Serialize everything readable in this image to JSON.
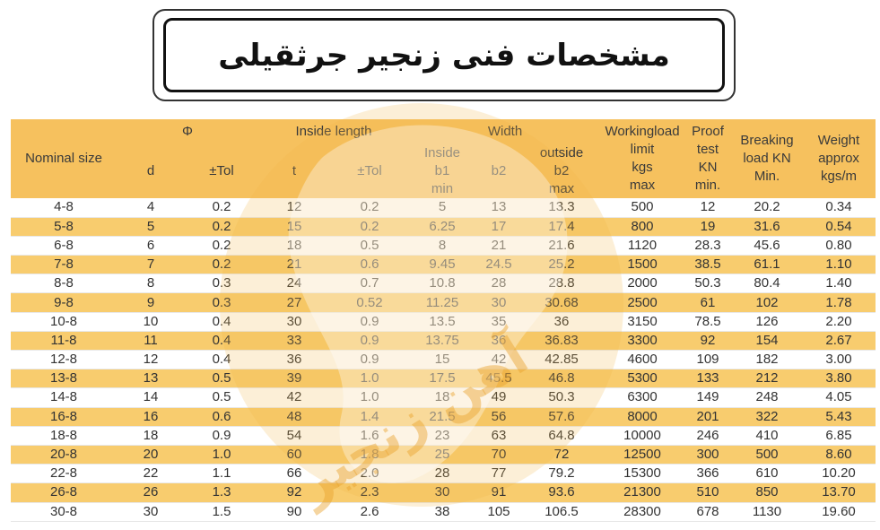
{
  "title": "مشخصات فنی زنجیر جرثقیلی",
  "columns": {
    "nominal": "Nominal size",
    "phi": "Φ",
    "d": "d",
    "tol1": "±Tol",
    "inside_length": "Inside length",
    "t": "t",
    "tol2": "±Tol",
    "width": "Width",
    "inside_b1": [
      "Inside",
      "b1",
      "min"
    ],
    "b2": "b2",
    "outside_b2": [
      "outside",
      "b2",
      "max"
    ],
    "workingload": [
      "Workingload",
      "limit",
      "kgs",
      "max"
    ],
    "proof": [
      "Proof",
      "test",
      "KN",
      "min."
    ],
    "breaking": [
      "Breaking",
      "load KN",
      "Min."
    ],
    "weight": [
      "Weight",
      "approx",
      "kgs/m"
    ]
  },
  "rows": [
    [
      "4-8",
      "4",
      "0.2",
      "12",
      "0.2",
      "5",
      "13",
      "13.3",
      "500",
      "12",
      "20.2",
      "0.34"
    ],
    [
      "5-8",
      "5",
      "0.2",
      "15",
      "0.2",
      "6.25",
      "17",
      "17.4",
      "800",
      "19",
      "31.6",
      "0.54"
    ],
    [
      "6-8",
      "6",
      "0.2",
      "18",
      "0.5",
      "8",
      "21",
      "21.6",
      "1120",
      "28.3",
      "45.6",
      "0.80"
    ],
    [
      "7-8",
      "7",
      "0.2",
      "21",
      "0.6",
      "9.45",
      "24.5",
      "25.2",
      "1500",
      "38.5",
      "61.1",
      "1.10"
    ],
    [
      "8-8",
      "8",
      "0.3",
      "24",
      "0.7",
      "10.8",
      "28",
      "28.8",
      "2000",
      "50.3",
      "80.4",
      "1.40"
    ],
    [
      "9-8",
      "9",
      "0.3",
      "27",
      "0.52",
      "11.25",
      "30",
      "30.68",
      "2500",
      "61",
      "102",
      "1.78"
    ],
    [
      "10-8",
      "10",
      "0.4",
      "30",
      "0.9",
      "13.5",
      "35",
      "36",
      "3150",
      "78.5",
      "126",
      "2.20"
    ],
    [
      "11-8",
      "11",
      "0.4",
      "33",
      "0.9",
      "13.75",
      "36",
      "36.83",
      "3300",
      "92",
      "154",
      "2.67"
    ],
    [
      "12-8",
      "12",
      "0.4",
      "36",
      "0.9",
      "15",
      "42",
      "42.85",
      "4600",
      "109",
      "182",
      "3.00"
    ],
    [
      "13-8",
      "13",
      "0.5",
      "39",
      "1.0",
      "17.5",
      "45.5",
      "46.8",
      "5300",
      "133",
      "212",
      "3.80"
    ],
    [
      "14-8",
      "14",
      "0.5",
      "42",
      "1.0",
      "18",
      "49",
      "50.3",
      "6300",
      "149",
      "248",
      "4.05"
    ],
    [
      "16-8",
      "16",
      "0.6",
      "48",
      "1.4",
      "21.5",
      "56",
      "57.6",
      "8000",
      "201",
      "322",
      "5.43"
    ],
    [
      "18-8",
      "18",
      "0.9",
      "54",
      "1.6",
      "23",
      "63",
      "64.8",
      "10000",
      "246",
      "410",
      "6.85"
    ],
    [
      "20-8",
      "20",
      "1.0",
      "60",
      "1.8",
      "25",
      "70",
      "72",
      "12500",
      "300",
      "500",
      "8.60"
    ],
    [
      "22-8",
      "22",
      "1.1",
      "66",
      "2.0",
      "28",
      "77",
      "79.2",
      "15300",
      "366",
      "610",
      "10.20"
    ],
    [
      "26-8",
      "26",
      "1.3",
      "92",
      "2.3",
      "30",
      "91",
      "93.6",
      "21300",
      "510",
      "850",
      "13.70"
    ],
    [
      "30-8",
      "30",
      "1.5",
      "90",
      "2.6",
      "38",
      "105",
      "106.5",
      "28300",
      "678",
      "1130",
      "19.60"
    ]
  ],
  "watermark_text": "آهن زنجیر",
  "colors": {
    "header": "#f6c15e",
    "stripe": "#f8cc6e"
  }
}
